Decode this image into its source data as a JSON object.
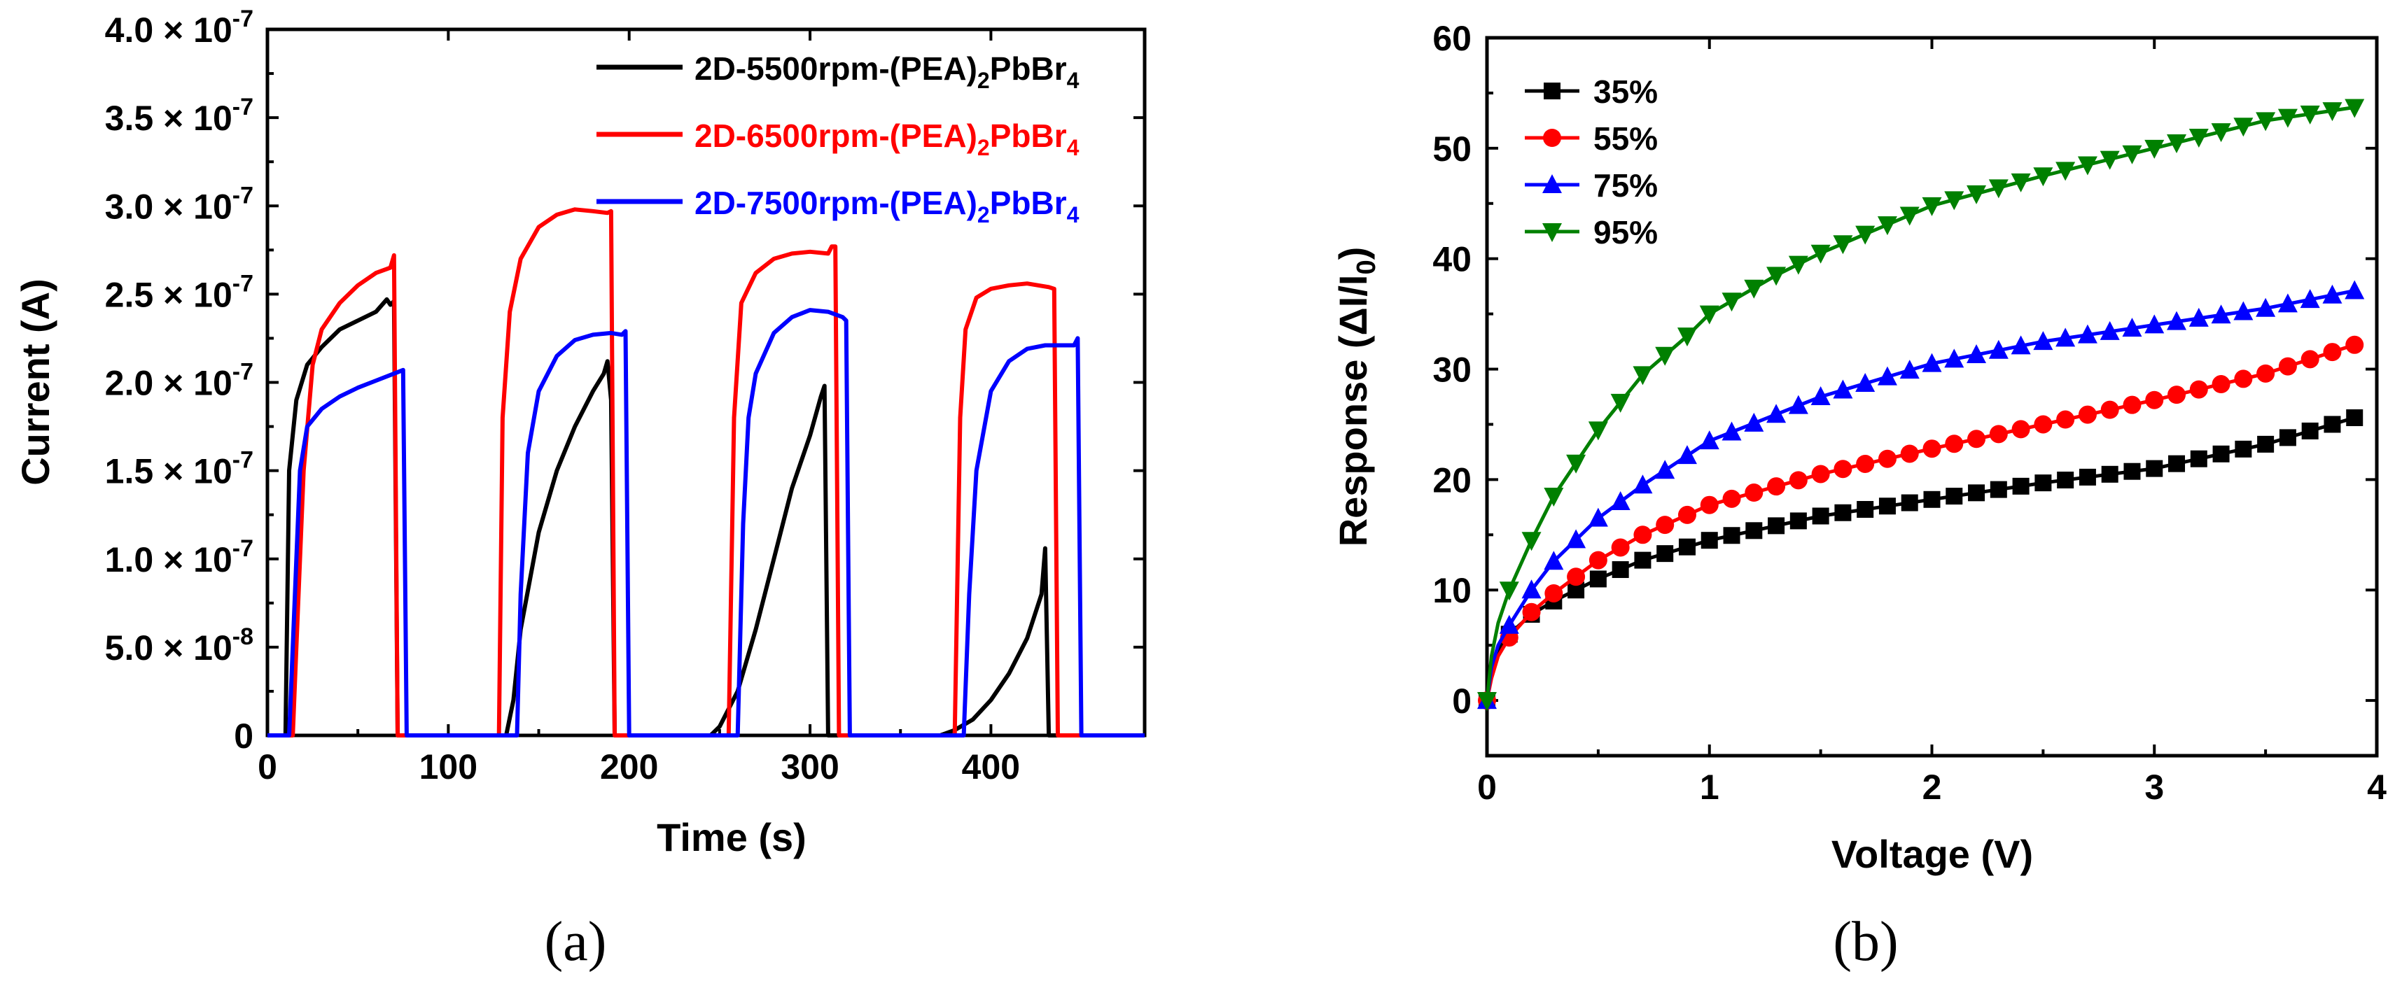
{
  "chart_data": [
    {
      "type": "line",
      "panel": "(a)",
      "xlabel": "Time (s)",
      "ylabel": "Current (A)",
      "xlim": [
        0,
        485
      ],
      "ylim": [
        0,
        4e-07
      ],
      "xticks": [
        0,
        100,
        200,
        300,
        400
      ],
      "xtick_labels": [
        "0",
        "100",
        "200",
        "300",
        "400"
      ],
      "yticks": [
        0,
        5e-08,
        1e-07,
        1.5e-07,
        2e-07,
        2.5e-07,
        3e-07,
        3.5e-07,
        4e-07
      ],
      "ytick_labels": [
        {
          "mantissa": "0",
          "exp": ""
        },
        {
          "mantissa": "5.0",
          "exp": "-8"
        },
        {
          "mantissa": "1.0",
          "exp": "-7"
        },
        {
          "mantissa": "1.5",
          "exp": "-7"
        },
        {
          "mantissa": "2.0",
          "exp": "-7"
        },
        {
          "mantissa": "2.5",
          "exp": "-7"
        },
        {
          "mantissa": "3.0",
          "exp": "-7"
        },
        {
          "mantissa": "3.5",
          "exp": "-7"
        },
        {
          "mantissa": "4.0",
          "exp": "-7"
        }
      ],
      "legend_position": "top-right",
      "series": [
        {
          "name": "2D-5500rpm-(PEA)2PbBr4",
          "legend": {
            "prefix": "2D-5500rpm-(PEA)",
            "sub1": "2",
            "mid": "PbBr",
            "sub2": "4"
          },
          "color": "#000000",
          "x": [
            0,
            10,
            12,
            16,
            22,
            30,
            40,
            50,
            60,
            66,
            68,
            70,
            72,
            80,
            100,
            125,
            132,
            136,
            140,
            150,
            160,
            170,
            180,
            186,
            188,
            190,
            192,
            200,
            220,
            245,
            250,
            260,
            270,
            280,
            290,
            300,
            306,
            308,
            310,
            320,
            360,
            372,
            380,
            390,
            400,
            410,
            420,
            428,
            430,
            432,
            440,
            485
          ],
          "y": [
            0,
            0,
            1.5e-07,
            1.9e-07,
            2.1e-07,
            2.2e-07,
            2.3e-07,
            2.35e-07,
            2.4e-07,
            2.47e-07,
            2.44e-07,
            2.46e-07,
            0,
            0,
            0,
            0,
            0,
            2e-08,
            6e-08,
            1.15e-07,
            1.5e-07,
            1.75e-07,
            1.95e-07,
            2.05e-07,
            2.12e-07,
            1.9e-07,
            0,
            0,
            0,
            0,
            5e-09,
            2.5e-08,
            6e-08,
            1e-07,
            1.4e-07,
            1.7e-07,
            1.92e-07,
            1.98e-07,
            0,
            0,
            0,
            0,
            3e-09,
            9e-09,
            2e-08,
            3.5e-08,
            5.5e-08,
            8e-08,
            1.06e-07,
            0,
            0,
            0
          ]
        },
        {
          "name": "2D-6500rpm-(PEA)2PbBr4",
          "legend": {
            "prefix": "2D-6500rpm-(PEA)",
            "sub1": "2",
            "mid": "PbBr",
            "sub2": "4"
          },
          "color": "#ff0000",
          "x": [
            0,
            14,
            16,
            20,
            25,
            30,
            40,
            50,
            60,
            68,
            70,
            72,
            80,
            128,
            130,
            134,
            140,
            150,
            160,
            170,
            180,
            188,
            190,
            192,
            200,
            255,
            258,
            262,
            270,
            280,
            290,
            300,
            310,
            312,
            314,
            316,
            380,
            383,
            386,
            392,
            400,
            410,
            420,
            432,
            435,
            437,
            485
          ],
          "y": [
            0,
            0,
            5e-08,
            1.5e-07,
            2.1e-07,
            2.3e-07,
            2.45e-07,
            2.55e-07,
            2.62e-07,
            2.65e-07,
            2.72e-07,
            0,
            0,
            0,
            1.8e-07,
            2.4e-07,
            2.7e-07,
            2.88e-07,
            2.95e-07,
            2.98e-07,
            2.97e-07,
            2.96e-07,
            2.97e-07,
            0,
            0,
            0,
            1.8e-07,
            2.45e-07,
            2.62e-07,
            2.7e-07,
            2.73e-07,
            2.74e-07,
            2.73e-07,
            2.77e-07,
            2.77e-07,
            0,
            0,
            1.8e-07,
            2.3e-07,
            2.48e-07,
            2.53e-07,
            2.55e-07,
            2.56e-07,
            2.54e-07,
            2.53e-07,
            0,
            0
          ]
        },
        {
          "name": "2D-7500rpm-(PEA)2PbBr4",
          "legend": {
            "prefix": "2D-7500rpm-(PEA)",
            "sub1": "2",
            "mid": "PbBr",
            "sub2": "4"
          },
          "color": "#0000ff",
          "x": [
            0,
            12,
            14,
            18,
            22,
            30,
            40,
            50,
            60,
            70,
            75,
            77,
            80,
            138,
            140,
            144,
            150,
            160,
            170,
            180,
            190,
            196,
            198,
            200,
            260,
            263,
            266,
            270,
            280,
            290,
            300,
            310,
            318,
            320,
            322,
            385,
            388,
            392,
            400,
            410,
            420,
            430,
            440,
            446,
            448,
            450,
            485
          ],
          "y": [
            0,
            0,
            5e-08,
            1.5e-07,
            1.75e-07,
            1.85e-07,
            1.92e-07,
            1.97e-07,
            2.01e-07,
            2.05e-07,
            2.07e-07,
            0,
            0,
            0,
            8e-08,
            1.6e-07,
            1.95e-07,
            2.15e-07,
            2.24e-07,
            2.27e-07,
            2.28e-07,
            2.27e-07,
            2.29e-07,
            0,
            0,
            1.2e-07,
            1.8e-07,
            2.05e-07,
            2.28e-07,
            2.37e-07,
            2.41e-07,
            2.4e-07,
            2.37e-07,
            2.35e-07,
            0,
            0,
            8e-08,
            1.5e-07,
            1.95e-07,
            2.12e-07,
            2.19e-07,
            2.21e-07,
            2.21e-07,
            2.21e-07,
            2.25e-07,
            0,
            0
          ]
        }
      ]
    },
    {
      "type": "line",
      "panel": "(b)",
      "xlabel": "Voltage (V)",
      "ylabel": {
        "prefix": "Response (ΔI/I",
        "sub": "0",
        "suffix": ")"
      },
      "xlim": [
        0,
        4
      ],
      "ylim": [
        -5,
        60
      ],
      "xticks": [
        0,
        1,
        2,
        3,
        4
      ],
      "xtick_labels": [
        "0",
        "1",
        "2",
        "3",
        "4"
      ],
      "yticks": [
        0,
        10,
        20,
        30,
        40,
        50,
        60
      ],
      "ytick_labels": [
        "0",
        "10",
        "20",
        "30",
        "40",
        "50",
        "60"
      ],
      "legend_position": "top-left",
      "series": [
        {
          "name": "35%",
          "color": "#000000",
          "marker": "square",
          "x": [
            0,
            0.02,
            0.05,
            0.1,
            0.2,
            0.3,
            0.5,
            0.7,
            1.0,
            1.5,
            2.0,
            2.5,
            3.0,
            3.5,
            3.9
          ],
          "y": [
            0,
            2.5,
            4.5,
            6.0,
            7.8,
            9.0,
            11.0,
            12.7,
            14.5,
            16.7,
            18.2,
            19.7,
            21.0,
            23.2,
            25.6
          ]
        },
        {
          "name": "55%",
          "color": "#ff0000",
          "marker": "circle",
          "x": [
            0,
            0.02,
            0.05,
            0.1,
            0.2,
            0.3,
            0.5,
            0.7,
            1.0,
            1.5,
            2.0,
            2.5,
            3.0,
            3.5,
            3.9
          ],
          "y": [
            0,
            2.0,
            4.0,
            5.7,
            8.0,
            9.7,
            12.7,
            15.0,
            17.7,
            20.5,
            22.8,
            25.0,
            27.2,
            29.6,
            32.2
          ]
        },
        {
          "name": "75%",
          "color": "#0000ff",
          "marker": "triangle-up",
          "x": [
            0,
            0.02,
            0.05,
            0.1,
            0.2,
            0.3,
            0.5,
            0.7,
            1.0,
            1.5,
            2.0,
            2.5,
            3.0,
            3.5,
            3.9
          ],
          "y": [
            0,
            3.0,
            5.0,
            6.8,
            10.0,
            12.6,
            16.5,
            19.5,
            23.5,
            27.5,
            30.5,
            32.5,
            34.0,
            35.5,
            37.1
          ]
        },
        {
          "name": "95%",
          "color": "#008000",
          "marker": "triangle-down",
          "x": [
            0,
            0.02,
            0.05,
            0.1,
            0.2,
            0.3,
            0.5,
            0.7,
            0.9,
            1.0,
            1.3,
            1.5,
            2.0,
            2.5,
            3.0,
            3.5,
            3.9
          ],
          "y": [
            0,
            4.0,
            7.0,
            10.0,
            14.5,
            18.5,
            24.5,
            29.5,
            33.0,
            35.0,
            38.5,
            40.5,
            44.8,
            47.5,
            50.0,
            52.5,
            53.7
          ]
        }
      ]
    }
  ]
}
